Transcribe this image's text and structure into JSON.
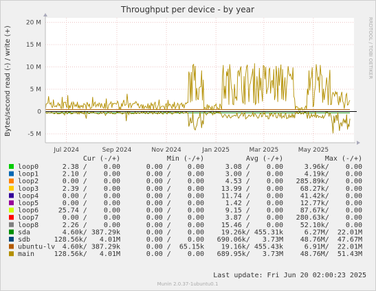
{
  "chart_data": {
    "type": "line",
    "title": "Throughput per device - by year",
    "ylabel": "Bytes/second read (-) / write (+)",
    "side_label": "RRDTOOL / TOBI OETIKER",
    "ylim": [
      -7000000,
      21000000
    ],
    "y_ticks": [
      {
        "value": 20000000,
        "label": "20 M"
      },
      {
        "value": 15000000,
        "label": "15 M"
      },
      {
        "value": 10000000,
        "label": "10 M"
      },
      {
        "value": 5000000,
        "label": "5 M"
      },
      {
        "value": 0,
        "label": "0"
      },
      {
        "value": -5000000,
        "label": "-5 M"
      }
    ],
    "x_ticks": [
      {
        "date": "2024-07-01",
        "label": "Jul 2024"
      },
      {
        "date": "2024-09-01",
        "label": "Sep 2024"
      },
      {
        "date": "2024-11-01",
        "label": "Nov 2024"
      },
      {
        "date": "2025-01-01",
        "label": "Jan 2025"
      },
      {
        "date": "2025-03-01",
        "label": "Mar 2025"
      },
      {
        "date": "2025-05-01",
        "label": "May 2025"
      }
    ],
    "x_range": [
      "2024-06-05",
      "2025-06-20"
    ],
    "grid": true,
    "legend_position": "below",
    "legend_headers": {
      "cur": "Cur (-/+)",
      "min": "Min (-/+)",
      "avg": "Avg (-/+)",
      "max": "Max (-/+)"
    },
    "series": [
      {
        "name": "loop0",
        "color": "#00cc00",
        "cur": "2.38 /    0.00",
        "min": "0.00 /    0.00",
        "avg": "3.08 /    0.00",
        "max": "3.96k/    0.00"
      },
      {
        "name": "loop1",
        "color": "#0066b3",
        "cur": "2.10 /    0.00",
        "min": "0.00 /    0.00",
        "avg": "3.00 /    0.00",
        "max": "4.19k/    0.00"
      },
      {
        "name": "loop2",
        "color": "#ff8000",
        "cur": "0.00 /    0.00",
        "min": "0.00 /    0.00",
        "avg": "4.53 /    0.00",
        "max": "285.89k/    0.00"
      },
      {
        "name": "loop3",
        "color": "#ffcc00",
        "cur": "2.39 /    0.00",
        "min": "0.00 /    0.00",
        "avg": "13.99 /    0.00",
        "max": "68.27k/    0.00"
      },
      {
        "name": "loop4",
        "color": "#330099",
        "cur": "0.00 /    0.00",
        "min": "0.00 /    0.00",
        "avg": "11.74 /    0.00",
        "max": "41.42k/    0.00"
      },
      {
        "name": "loop5",
        "color": "#990099",
        "cur": "0.00 /    0.00",
        "min": "0.00 /    0.00",
        "avg": "1.42 /    0.00",
        "max": "12.77k/    0.00"
      },
      {
        "name": "loop6",
        "color": "#ccff00",
        "cur": "25.74 /    0.00",
        "min": "0.00 /    0.00",
        "avg": "9.15 /    0.00",
        "max": "87.67k/    0.00"
      },
      {
        "name": "loop7",
        "color": "#ff0000",
        "cur": "0.00 /    0.00",
        "min": "0.00 /    0.00",
        "avg": "3.87 /    0.00",
        "max": "280.63k/    0.00"
      },
      {
        "name": "loop8",
        "color": "#808080",
        "cur": "2.26 /    0.00",
        "min": "0.00 /    0.00",
        "avg": "15.46 /    0.00",
        "max": "52.10k/    0.00"
      },
      {
        "name": "sda",
        "color": "#008f00",
        "cur": "4.60k/ 387.29k",
        "min": "0.00 /    0.00",
        "avg": "19.26k/ 455.31k",
        "max": "6.27M/  22.01M"
      },
      {
        "name": "sdb",
        "color": "#00487d",
        "cur": "128.56k/   4.01M",
        "min": "0.00 /    0.00",
        "avg": "690.06k/   3.73M",
        "max": "48.76M/  47.67M"
      },
      {
        "name": "ubuntu-lv",
        "color": "#b35a00",
        "cur": "4.60k/ 387.29k",
        "min": "0.00 /  65.15k",
        "avg": "19.16k/ 455.43k",
        "max": "6.91M/  22.01M"
      },
      {
        "name": "main",
        "color": "#b38f00",
        "cur": "128.56k/   4.01M",
        "min": "0.00 /    0.00",
        "avg": "689.95k/   3.73M",
        "max": "48.76M/  51.43M"
      }
    ]
  },
  "footer": {
    "last_update": "Last update: Fri Jun 20 02:00:23 2025",
    "munin_version": "Munin 2.0.37-1ubuntu0.1"
  }
}
